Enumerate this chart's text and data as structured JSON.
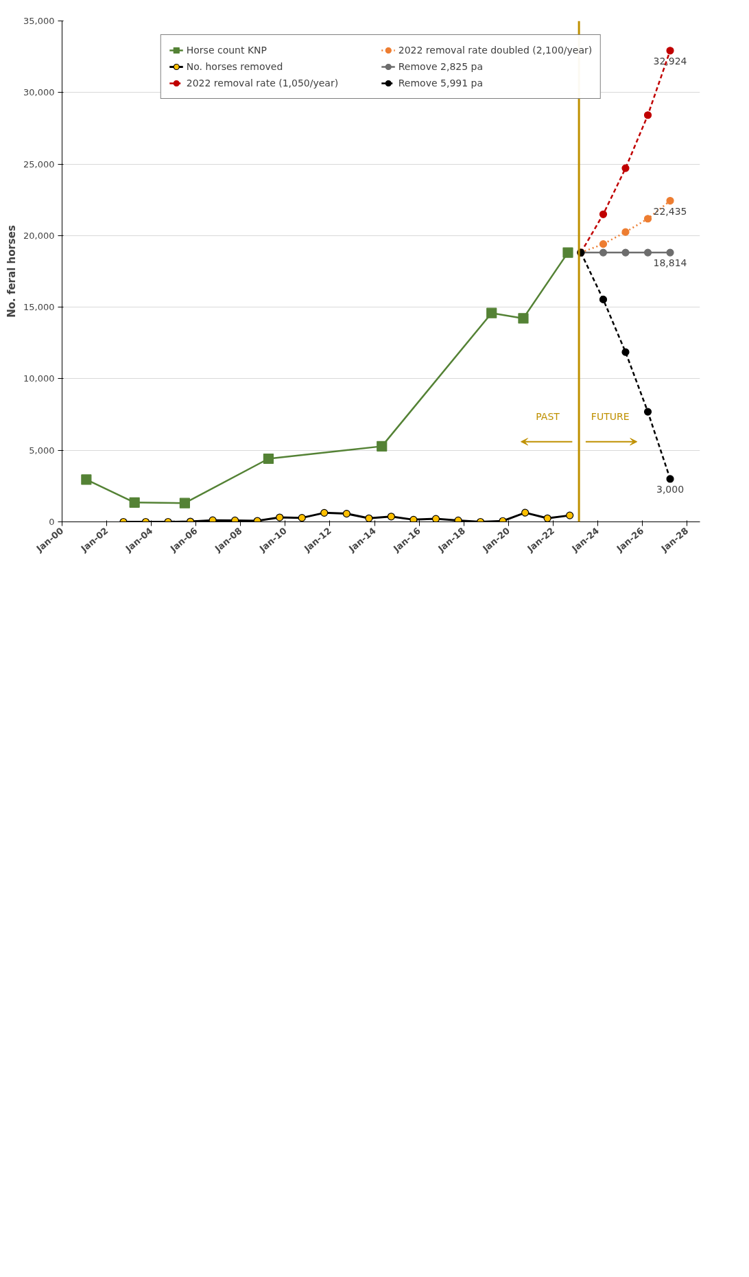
{
  "chart_data": {
    "type": "line",
    "ylabel": "No. feral horses",
    "xlim": [
      "2000-01-01",
      "2028-08-01"
    ],
    "xticks": [
      {
        "value": "2000-01-01",
        "label": "Jan-00"
      },
      {
        "value": "2002-01-01",
        "label": "Jan-02"
      },
      {
        "value": "2004-01-01",
        "label": "Jan-04"
      },
      {
        "value": "2006-01-01",
        "label": "Jan-06"
      },
      {
        "value": "2008-01-01",
        "label": "Jan-08"
      },
      {
        "value": "2010-01-01",
        "label": "Jan-10"
      },
      {
        "value": "2012-01-01",
        "label": "Jan-12"
      },
      {
        "value": "2014-01-01",
        "label": "Jan-14"
      },
      {
        "value": "2016-01-01",
        "label": "Jan-16"
      },
      {
        "value": "2018-01-01",
        "label": "Jan-18"
      },
      {
        "value": "2020-01-01",
        "label": "Jan-20"
      },
      {
        "value": "2022-01-01",
        "label": "Jan-22"
      },
      {
        "value": "2024-01-01",
        "label": "Jan-24"
      },
      {
        "value": "2026-01-01",
        "label": "Jan-26"
      },
      {
        "value": "2028-01-01",
        "label": "Jan-28"
      }
    ],
    "ylim": [
      0,
      35000
    ],
    "yticks": [
      0,
      {
        "value": 5000,
        "label": "5,000"
      },
      {
        "value": 10000,
        "label": "10,000"
      },
      {
        "value": 15000,
        "label": "15,000"
      },
      {
        "value": 20000,
        "label": "20,000"
      },
      {
        "value": 25000,
        "label": "25,000"
      },
      {
        "value": 30000,
        "label": "30,000"
      },
      {
        "value": 35000,
        "label": "35,000"
      }
    ],
    "grid": "y",
    "legend": "top",
    "series": [
      {
        "name": "Horse count KNP",
        "color": "#548235",
        "marker": "square",
        "line_style": "solid",
        "x": [
          "2001-02",
          "2003-04",
          "2005-07",
          "2009-04",
          "2014-05",
          "2019-04",
          "2020-09",
          "2022-09"
        ],
        "values": [
          2950,
          1350,
          1310,
          4410,
          5280,
          14590,
          14220,
          18814
        ]
      },
      {
        "name": "No. horses removed",
        "color": "#000000",
        "colors": [
          "#ffc000",
          "#ffc000",
          "#ffc000",
          "#ffc000",
          "#ffc000",
          "#ffc000",
          "#ffc000",
          "#ffc000",
          "#ffc000",
          "#ffc000",
          "#ffc000",
          "#ffc000",
          "#ffc000",
          "#ffc000",
          "#ffc000",
          "#ffc000",
          "#ffc000",
          "#ffc000",
          "#ffc000",
          "#ffc000",
          "#ffc000"
        ],
        "marker": "circle",
        "line_style": "solid",
        "x": [
          "2002-10",
          "2003-10",
          "2004-10",
          "2005-10",
          "2006-10",
          "2007-10",
          "2008-10",
          "2009-10",
          "2010-10",
          "2011-10",
          "2012-10",
          "2013-10",
          "2014-10",
          "2015-10",
          "2016-10",
          "2017-10",
          "2018-10",
          "2019-10",
          "2020-10",
          "2021-10",
          "2022-10"
        ],
        "values": [
          0,
          0,
          0,
          20,
          110,
          100,
          70,
          310,
          280,
          630,
          570,
          250,
          370,
          150,
          210,
          100,
          0,
          60,
          640,
          250,
          450
        ]
      },
      {
        "name": "2022 removal rate (1,050/year)",
        "color": "#c00000",
        "marker": "circle",
        "line_style": "dashed",
        "x": [
          "2023-04",
          "2024-04",
          "2025-04",
          "2026-04",
          "2027-04"
        ],
        "values": [
          18814,
          21490,
          24710,
          28420,
          32924
        ],
        "value_labels": [
          null,
          null,
          null,
          null,
          "32,924"
        ]
      },
      {
        "name": "2022 removal rate doubled (2,100/year)",
        "color": "#ed7d31",
        "marker": "circle",
        "line_style": "dotted",
        "x": [
          "2023-04",
          "2024-04",
          "2025-04",
          "2026-04",
          "2027-04"
        ],
        "values": [
          18814,
          19410,
          20250,
          21180,
          22435
        ],
        "value_labels": [
          null,
          null,
          null,
          null,
          "22,435"
        ]
      },
      {
        "name": "Remove 2,825 pa",
        "color": "#6d6d6d",
        "marker": "circle",
        "line_style": "solid",
        "x": [
          "2023-04",
          "2024-04",
          "2025-04",
          "2026-04",
          "2027-04"
        ],
        "values": [
          18814,
          18814,
          18814,
          18814,
          18814
        ],
        "value_labels": [
          null,
          null,
          null,
          null,
          "18,814"
        ]
      },
      {
        "name": "Remove 5,991 pa",
        "color": "#000000",
        "marker": "circle",
        "line_style": "dashed",
        "x": [
          "2023-04",
          "2024-04",
          "2025-04",
          "2026-04",
          "2027-04"
        ],
        "values": [
          18814,
          15540,
          11860,
          7690,
          3000
        ],
        "value_labels": [
          null,
          null,
          null,
          null,
          "3,000"
        ]
      }
    ],
    "ref_lines": [
      {
        "axis": "x",
        "value": "2023-03",
        "color": "#bf9000"
      }
    ],
    "annotations": [
      "PAST",
      "FUTURE"
    ]
  }
}
